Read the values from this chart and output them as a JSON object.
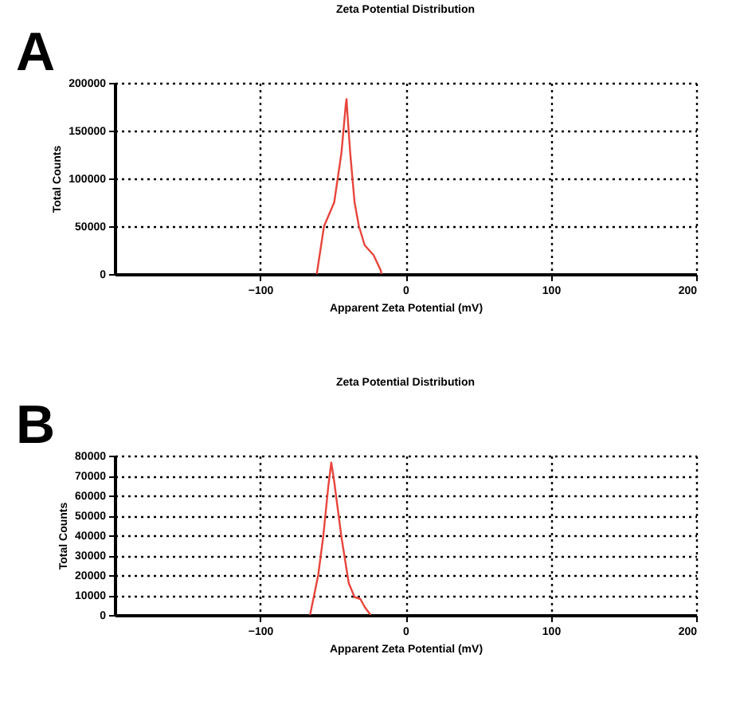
{
  "chart_data": [
    {
      "type": "line",
      "title": "Zeta Potential Distribution",
      "xlabel": "Apparent Zeta Potential (mV)",
      "ylabel": "Total Counts",
      "annotations": [
        "A"
      ],
      "xlim": [
        -200,
        200
      ],
      "xticks": [
        -100,
        0,
        100,
        200
      ],
      "ylim": [
        0,
        200000
      ],
      "yticks": [
        0,
        50000,
        100000,
        150000,
        200000
      ],
      "grid": true,
      "line_style": "solid",
      "marker": "none",
      "series": [
        {
          "color": "#e8453c",
          "x": [
            -61,
            -56,
            -49,
            -44,
            -41,
            -40.5,
            -40,
            -38,
            -35,
            -32,
            -28,
            -22,
            -17,
            -16.5
          ],
          "values": [
            0,
            50000,
            75000,
            127000,
            178000,
            183000,
            170000,
            127000,
            75000,
            50000,
            30000,
            20000,
            4000,
            0
          ]
        }
      ]
    },
    {
      "type": "line",
      "title": "Zeta Potential Distribution",
      "xlabel": "Apparent Zeta Potential (mV)",
      "ylabel": "Total Counts",
      "annotations": [
        "B"
      ],
      "xlim": [
        -200,
        200
      ],
      "xticks": [
        -100,
        0,
        100,
        200
      ],
      "ylim": [
        0,
        80000
      ],
      "yticks": [
        0,
        10000,
        20000,
        30000,
        40000,
        50000,
        60000,
        70000,
        80000
      ],
      "grid": true,
      "line_style": "solid",
      "marker": "none",
      "series": [
        {
          "color": "#e8453c",
          "x": [
            -65.6,
            -60,
            -56.6,
            -53,
            -51,
            -49,
            -44,
            -39,
            -35,
            -31,
            -28,
            -24
          ],
          "values": [
            0,
            20000,
            39000,
            65000,
            76500,
            67000,
            39000,
            16000,
            9000,
            8000,
            4000,
            0
          ]
        }
      ]
    }
  ]
}
